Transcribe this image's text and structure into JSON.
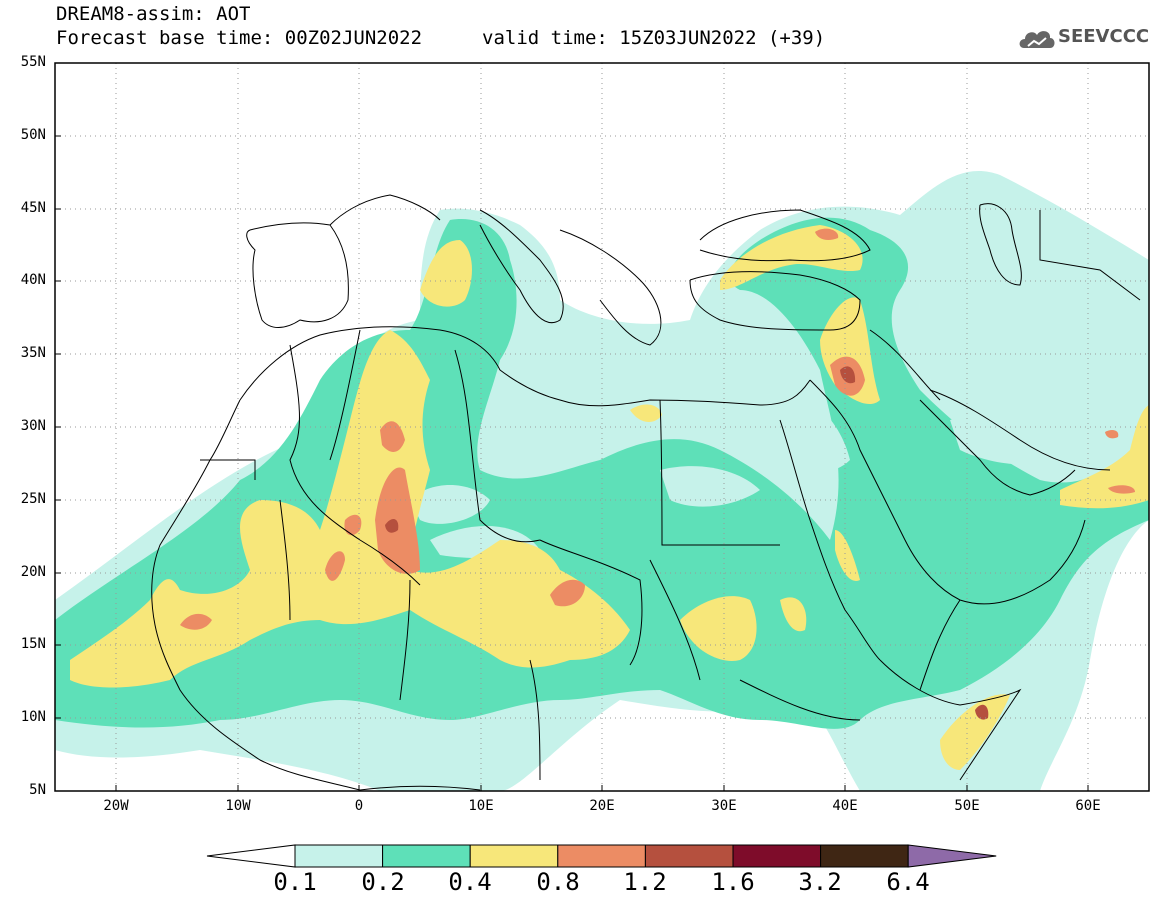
{
  "header": {
    "title_line1": "DREAM8-assim: AOT",
    "title_line2": "Forecast base time: 00Z02JUN2022",
    "valid_time": "valid time: 15Z03JUN2022 (+39)",
    "logo_text": "SEEVCCC"
  },
  "axes": {
    "lat_labels": [
      "55N",
      "50N",
      "45N",
      "40N",
      "35N",
      "30N",
      "25N",
      "20N",
      "15N",
      "10N",
      "5N"
    ],
    "lon_labels": [
      "20W",
      "10W",
      "0",
      "10E",
      "20E",
      "30E",
      "40E",
      "50E",
      "60E"
    ]
  },
  "colorbar": {
    "labels": [
      "0.1",
      "0.2",
      "0.4",
      "0.8",
      "1.2",
      "1.6",
      "3.2",
      "6.4"
    ],
    "colors": [
      "#ffffff",
      "#c6f2ea",
      "#5ee0b8",
      "#f7e77a",
      "#ec8c64",
      "#b5503e",
      "#7e0c2a",
      "#3f2614",
      "#8e6aa8"
    ]
  }
}
